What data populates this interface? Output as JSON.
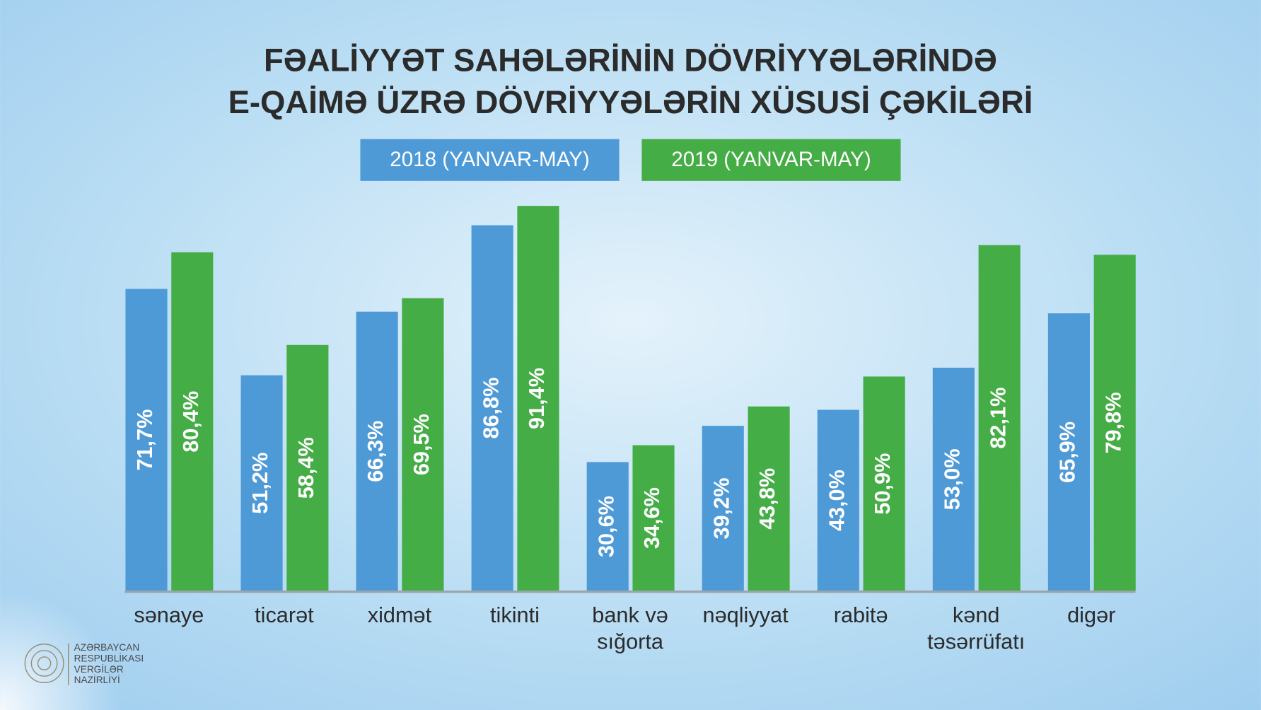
{
  "chart_data": {
    "type": "bar",
    "title": "FƏALİYYƏT SAHƏLƏRİNİN DÖVRİYYƏLƏRİNDƏ\nE-QAİMƏ ÜZRƏ DÖVRİYYƏLƏRİN XÜSUSİ ÇƏKİLƏRİ",
    "categories": [
      "sənaye",
      "ticarət",
      "xidmət",
      "tikinti",
      "bank və\nsığorta",
      "nəqliyyat",
      "rabitə",
      "kənd\ntəsərrüfatı",
      "digər"
    ],
    "series": [
      {
        "name": "2018 (YANVAR-MAY)",
        "color": "#4e9ad7",
        "values": [
          71.7,
          51.2,
          66.3,
          86.8,
          30.6,
          39.2,
          43.0,
          53.0,
          65.9
        ],
        "value_labels": [
          "71,7%",
          "51,2%",
          "66,3%",
          "86,8%",
          "30,6%",
          "39,2%",
          "43,0%",
          "53,0%",
          "65,9%"
        ]
      },
      {
        "name": "2019 (YANVAR-MAY)",
        "color": "#45ad45",
        "values": [
          80.4,
          58.4,
          69.5,
          91.4,
          34.6,
          43.8,
          50.9,
          82.1,
          79.8
        ],
        "value_labels": [
          "80,4%",
          "58,4%",
          "69,5%",
          "91,4%",
          "34,6%",
          "43,8%",
          "50,9%",
          "82,1%",
          "79,8%"
        ]
      }
    ],
    "ylim": [
      0,
      100
    ],
    "legend": "top"
  },
  "logo": {
    "lines": [
      "AZƏRBAYCAN",
      "RESPUBLİKASI",
      "VERGİLƏR",
      "NAZİRLİYİ"
    ]
  }
}
